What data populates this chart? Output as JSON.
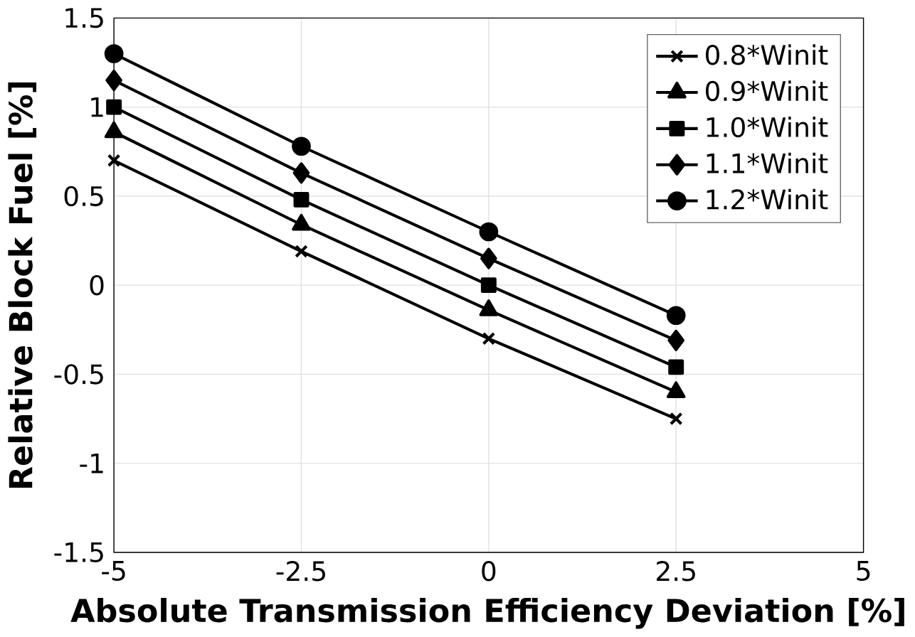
{
  "chart_data": {
    "type": "line",
    "xlabel": "Absolute Transmission Efficiency Deviation [%]",
    "ylabel": "Relative  Block  Fuel [%]",
    "x": [
      -5,
      -2.5,
      0,
      2.5
    ],
    "series": [
      {
        "name": "0.8*Winit",
        "color": "#000000",
        "marker": "cross",
        "values": [
          0.7,
          0.19,
          -0.3,
          -0.75
        ]
      },
      {
        "name": "0.9*Winit",
        "color": "#000000",
        "marker": "triangle",
        "values": [
          0.86,
          0.34,
          -0.14,
          -0.6
        ]
      },
      {
        "name": "1.0*Winit",
        "color": "#000000",
        "marker": "square",
        "values": [
          1.0,
          0.48,
          0.0,
          -0.46
        ]
      },
      {
        "name": "1.1*Winit",
        "color": "#000000",
        "marker": "diamond",
        "values": [
          1.15,
          0.63,
          0.15,
          -0.31
        ]
      },
      {
        "name": "1.2*Winit",
        "color": "#000000",
        "marker": "circle",
        "values": [
          1.3,
          0.78,
          0.3,
          -0.17
        ]
      }
    ],
    "xlim": [
      -5,
      5
    ],
    "ylim": [
      -1.5,
      1.5
    ],
    "xticks": [
      -5,
      -2.5,
      0,
      2.5,
      5
    ],
    "yticks": [
      -1.5,
      -1,
      -0.5,
      0,
      0.5,
      1,
      1.5
    ],
    "grid": true,
    "legend": "top right",
    "line_style": "solid"
  }
}
